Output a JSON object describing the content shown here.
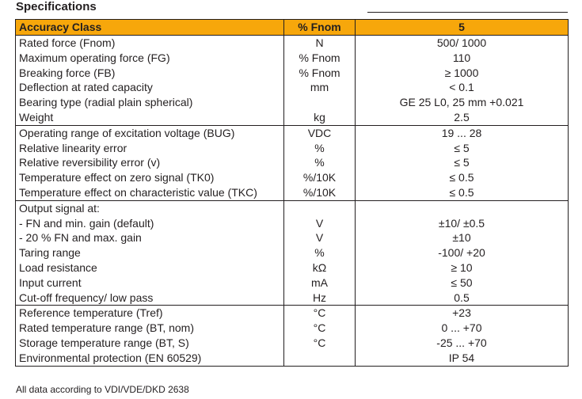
{
  "title": "Specifications",
  "header": {
    "param": "Accuracy Class",
    "unit": "% Fnom",
    "value": "5"
  },
  "rows": [
    {
      "param": "Rated force (Fnom)",
      "unit": "N",
      "value": "500/ 1000",
      "group_start": false
    },
    {
      "param": "Maximum operating force (FG)",
      "unit": "% Fnom",
      "value": "110",
      "group_start": false
    },
    {
      "param": "Breaking force (FB)",
      "unit": "% Fnom",
      "value": "≥ 1000",
      "group_start": false
    },
    {
      "param": "Deflection at rated capacity",
      "unit": "mm",
      "value": "< 0.1",
      "group_start": false
    },
    {
      "param": "Bearing type (radial plain spherical)",
      "unit": "",
      "value": "GE 25 L0, 25 mm +0.021",
      "group_start": false
    },
    {
      "param": "Weight",
      "unit": "kg",
      "value": "2.5",
      "group_start": false
    },
    {
      "param": "Operating range of excitation voltage (BUG)",
      "unit": "VDC",
      "value": "19 ... 28",
      "group_start": true
    },
    {
      "param": "Relative linearity error",
      "unit": "%",
      "value": "≤ 5",
      "group_start": false
    },
    {
      "param": "Relative reversibility error (v)",
      "unit": "%",
      "value": "≤ 5",
      "group_start": false
    },
    {
      "param": "Temperature effect on zero signal (TK0)",
      "unit": "%/10K",
      "value": "≤ 0.5",
      "group_start": false
    },
    {
      "param": "Temperature effect on characteristic value (TKC)",
      "unit": "%/10K",
      "value": "≤ 0.5",
      "group_start": false
    },
    {
      "param": "Output signal at:",
      "unit": "",
      "value": "",
      "group_start": true
    },
    {
      "param": "- FN and min. gain (default)",
      "unit": "V",
      "value": "±10/ ±0.5",
      "group_start": false
    },
    {
      "param": "- 20 % FN and max. gain",
      "unit": "V",
      "value": "±10",
      "group_start": false
    },
    {
      "param": "Taring range",
      "unit": "%",
      "value": "-100/ +20",
      "group_start": false
    },
    {
      "param": "Load resistance",
      "unit": "kΩ",
      "value": "≥ 10",
      "group_start": false
    },
    {
      "param": "Input current",
      "unit": "mA",
      "value": "≤ 50",
      "group_start": false
    },
    {
      "param": "Cut-off frequency/ low pass",
      "unit": "Hz",
      "value": "0.5",
      "group_start": false
    },
    {
      "param": "Reference temperature (Tref)",
      "unit": "°C",
      "value": "+23",
      "group_start": true
    },
    {
      "param": "Rated temperature range (BT, nom)",
      "unit": "°C",
      "value": "0 ... +70",
      "group_start": false
    },
    {
      "param": "Storage temperature range (BT, S)",
      "unit": "°C",
      "value": "-25 ... +70",
      "group_start": false
    },
    {
      "param": "Environmental protection (EN 60529)",
      "unit": "",
      "value": "IP 54",
      "group_start": false
    }
  ],
  "footer": "All data according to VDI/VDE/DKD 2638",
  "colors": {
    "header_bg": "#f7a70b",
    "text": "#231f20",
    "rule": "#231f20"
  }
}
